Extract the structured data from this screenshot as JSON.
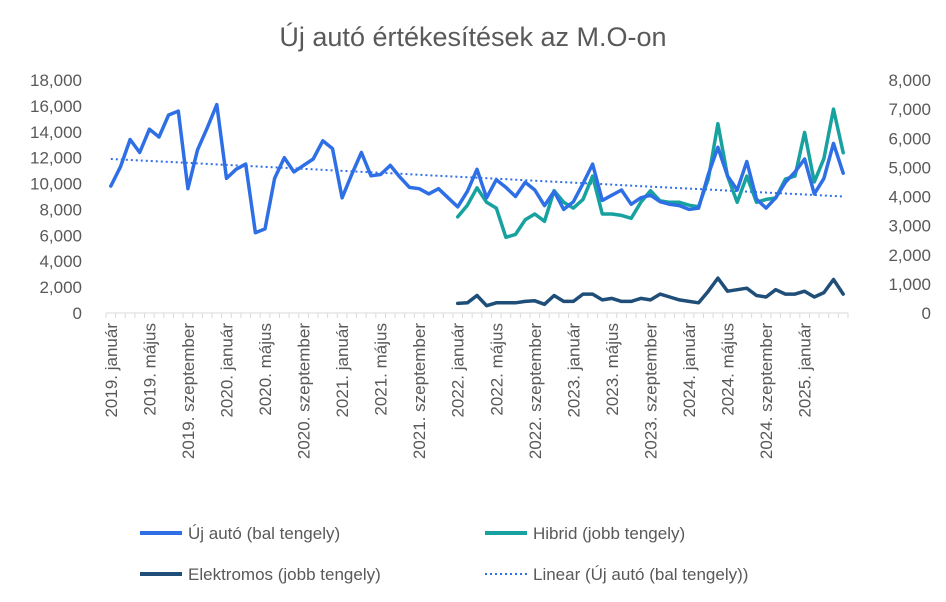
{
  "chart_data": {
    "type": "line",
    "title": "Új autó értékesítések az M.O-on",
    "colors": {
      "uj_auto": "#2F6FE6",
      "hibrid": "#17A2A0",
      "elektromos": "#1F4E79",
      "linear": "#2F6FE6"
    },
    "y_left": {
      "ylim": [
        0,
        18000
      ],
      "ticks": [
        "0",
        "2,000",
        "4,000",
        "6,000",
        "8,000",
        "10,000",
        "12,000",
        "14,000",
        "16,000",
        "18,000"
      ]
    },
    "y_right": {
      "ylim": [
        0,
        8000
      ],
      "ticks": [
        "0",
        "1,000",
        "2,000",
        "3,000",
        "4,000",
        "5,000",
        "6,000",
        "7,000",
        "8,000"
      ]
    },
    "x_labels": [
      "2019. január",
      "2019. május",
      "2019. szeptember",
      "2020. január",
      "2020. május",
      "2020. szeptember",
      "2021. január",
      "2021. május",
      "2021. szeptember",
      "2022. január",
      "2022. május",
      "2022. szeptember",
      "2023. január",
      "2023. május",
      "2023. szeptember",
      "2024. január",
      "2024. május",
      "2024. szeptember",
      "2025. január"
    ],
    "series": [
      {
        "name": "Új autó (bal tengely)",
        "axis": "left",
        "start_index": 0,
        "values": [
          9800,
          11300,
          13400,
          12400,
          14200,
          13600,
          15300,
          15600,
          9600,
          12600,
          14300,
          16100,
          10400,
          11100,
          11500,
          6200,
          6500,
          10400,
          12000,
          10900,
          11400,
          11900,
          13300,
          12700,
          8900,
          10700,
          12400,
          10600,
          10700,
          11400,
          10500,
          9700,
          9600,
          9200,
          9600,
          8900,
          8200,
          9400,
          11100,
          8900,
          10300,
          9700,
          9000,
          10100,
          9500,
          8300,
          9400,
          8000,
          8600,
          10000,
          11500,
          8700,
          9100,
          9500,
          8400,
          8900,
          9100,
          8600,
          8400,
          8300,
          8000,
          8100,
          10700,
          12800,
          10600,
          9500,
          11700,
          8800,
          8100,
          8900,
          10100,
          10900,
          11900,
          9200,
          10400,
          13100,
          10800
        ]
      },
      {
        "name": "Hibrid (jobb tengely)",
        "axis": "right",
        "start_index": 36,
        "values": [
          3300,
          3700,
          4300,
          3800,
          3600,
          2600,
          2700,
          3200,
          3400,
          3150,
          4200,
          3800,
          3600,
          3900,
          4700,
          3400,
          3400,
          3350,
          3250,
          3800,
          4200,
          3850,
          3800,
          3800,
          3700,
          3650,
          4600,
          6500,
          4700,
          3800,
          4700,
          3800,
          3900,
          3950,
          4600,
          4700,
          6200,
          4500,
          5300,
          7000,
          5500
        ]
      },
      {
        "name": "Elektromos (jobb tengely)",
        "axis": "right",
        "start_index": 36,
        "values": [
          330,
          350,
          600,
          250,
          350,
          350,
          350,
          400,
          420,
          300,
          600,
          400,
          400,
          650,
          650,
          450,
          500,
          400,
          400,
          500,
          450,
          650,
          550,
          450,
          400,
          350,
          750,
          1200,
          750,
          800,
          850,
          600,
          550,
          800,
          650,
          650,
          750,
          550,
          700,
          1150,
          650
        ]
      },
      {
        "name": "Linear (Új autó (bal tengely))",
        "axis": "left",
        "trend": true,
        "start_value": 11900,
        "end_value": 9000
      }
    ]
  },
  "legend": [
    "Új autó (bal tengely)",
    "Hibrid (jobb tengely)",
    "Elektromos (jobb tengely)",
    "Linear (Új autó (bal tengely))"
  ]
}
